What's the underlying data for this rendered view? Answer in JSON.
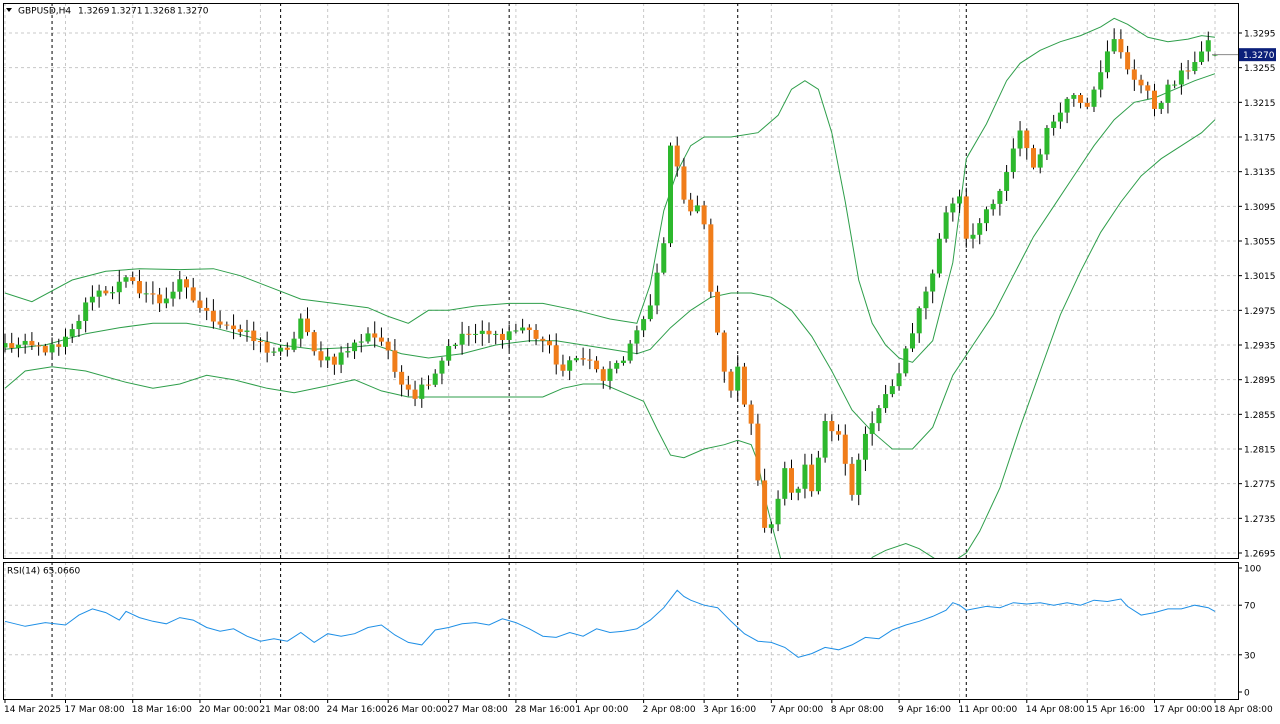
{
  "header": {
    "symbol": "GBPUSD,H4",
    "open": "1.3269",
    "high": "1.3271",
    "low": "1.3268",
    "close": "1.3270",
    "current_price_label": "1.3270"
  },
  "rsi_panel": {
    "label": "RSI(14) 65.0660",
    "levels": [
      100,
      70,
      30,
      0
    ],
    "level_labels": [
      "100",
      "70",
      "30",
      "0"
    ]
  },
  "colors": {
    "bull": "#2db82d",
    "bear": "#f07d1a",
    "wick": "#000000",
    "bands": "#2e9e4a",
    "rsi_line": "#1e8fe6",
    "grid": "#c8c8c8",
    "period_sep": "#000000",
    "price_tag_bg": "#0b1f7a",
    "price_tag_fg": "#ffffff"
  },
  "chart_data": {
    "type": "candlestick",
    "symbol": "GBPUSD",
    "timeframe": "H4",
    "y_ticks": [
      1.3295,
      1.3255,
      1.3215,
      1.3175,
      1.3135,
      1.3095,
      1.3055,
      1.3015,
      1.2975,
      1.2935,
      1.2895,
      1.2855,
      1.2815,
      1.2775,
      1.2735,
      1.2695
    ],
    "y_tick_labels": [
      "1.3295",
      "1.3255",
      "1.3215",
      "1.3175",
      "1.3135",
      "1.3095",
      "1.3055",
      "1.3015",
      "1.2975",
      "1.2935",
      "1.2895",
      "1.2855",
      "1.2815",
      "1.2775",
      "1.2735",
      "1.2695"
    ],
    "ylim": [
      1.2688,
      1.3322
    ],
    "x_labels": [
      {
        "bar": 0,
        "label": "14 Mar 2025"
      },
      {
        "bar": 9,
        "label": "17 Mar 08:00"
      },
      {
        "bar": 19,
        "label": "18 Mar 16:00"
      },
      {
        "bar": 29,
        "label": "20 Mar 00:00"
      },
      {
        "bar": 38,
        "label": "21 Mar 08:00"
      },
      {
        "bar": 48,
        "label": "24 Mar 16:00"
      },
      {
        "bar": 57,
        "label": "26 Mar 00:00"
      },
      {
        "bar": 66,
        "label": "27 Mar 08:00"
      },
      {
        "bar": 76,
        "label": "28 Mar 16:00"
      },
      {
        "bar": 85,
        "label": "1 Apr 00:00"
      },
      {
        "bar": 95,
        "label": "2 Apr 08:00"
      },
      {
        "bar": 104,
        "label": "3 Apr 16:00"
      },
      {
        "bar": 114,
        "label": "7 Apr 00:00"
      },
      {
        "bar": 123,
        "label": "8 Apr 08:00"
      },
      {
        "bar": 133,
        "label": "9 Apr 16:00"
      },
      {
        "bar": 142,
        "label": "11 Apr 00:00"
      },
      {
        "bar": 152,
        "label": "14 Apr 08:00"
      },
      {
        "bar": 161,
        "label": "15 Apr 16:00"
      },
      {
        "bar": 171,
        "label": "17 Apr 00:00"
      },
      {
        "bar": 180,
        "label": "18 Apr 08:00"
      }
    ],
    "period_separators": [
      7,
      41,
      75,
      109,
      143
    ],
    "bar_count": 181,
    "waypoints": [
      [
        0,
        1.2935
      ],
      [
        4,
        1.2932
      ],
      [
        8,
        1.293
      ],
      [
        10,
        1.295
      ],
      [
        13,
        1.2995
      ],
      [
        16,
        1.3
      ],
      [
        18,
        1.3008
      ],
      [
        20,
        1.3
      ],
      [
        23,
        1.2985
      ],
      [
        26,
        1.3005
      ],
      [
        30,
        1.297
      ],
      [
        33,
        1.296
      ],
      [
        36,
        1.2945
      ],
      [
        39,
        1.293
      ],
      [
        42,
        1.2925
      ],
      [
        44,
        1.2965
      ],
      [
        46,
        1.2925
      ],
      [
        49,
        1.2918
      ],
      [
        52,
        1.2935
      ],
      [
        54,
        1.295
      ],
      [
        56,
        1.294
      ],
      [
        58,
        1.2905
      ],
      [
        61,
        1.2878
      ],
      [
        64,
        1.2905
      ],
      [
        66,
        1.2935
      ],
      [
        69,
        1.2948
      ],
      [
        73,
        1.2945
      ],
      [
        77,
        1.2955
      ],
      [
        80,
        1.294
      ],
      [
        83,
        1.2905
      ],
      [
        86,
        1.2925
      ],
      [
        89,
        1.2895
      ],
      [
        92,
        1.292
      ],
      [
        94,
        1.2945
      ],
      [
        96,
        1.2985
      ],
      [
        98,
        1.305
      ],
      [
        99,
        1.316
      ],
      [
        100,
        1.314
      ],
      [
        101,
        1.31
      ],
      [
        103,
        1.309
      ],
      [
        104,
        1.308
      ],
      [
        105,
        1.3
      ],
      [
        106,
        1.295
      ],
      [
        107,
        1.29
      ],
      [
        108,
        1.2885
      ],
      [
        109,
        1.2905
      ],
      [
        110,
        1.287
      ],
      [
        111,
        1.284
      ],
      [
        112,
        1.278
      ],
      [
        113,
        1.2725
      ],
      [
        114,
        1.2735
      ],
      [
        115,
        1.276
      ],
      [
        116,
        1.279
      ],
      [
        117,
        1.276
      ],
      [
        118,
        1.2765
      ],
      [
        119,
        1.279
      ],
      [
        120,
        1.2765
      ],
      [
        121,
        1.28
      ],
      [
        122,
        1.285
      ],
      [
        124,
        1.2835
      ],
      [
        126,
        1.276
      ],
      [
        127,
        1.28
      ],
      [
        128,
        1.283
      ],
      [
        130,
        1.286
      ],
      [
        132,
        1.2885
      ],
      [
        134,
        1.293
      ],
      [
        136,
        1.2975
      ],
      [
        138,
        1.302
      ],
      [
        140,
        1.309
      ],
      [
        142,
        1.311
      ],
      [
        143,
        1.306
      ],
      [
        145,
        1.3075
      ],
      [
        147,
        1.3095
      ],
      [
        149,
        1.313
      ],
      [
        151,
        1.3185
      ],
      [
        153,
        1.314
      ],
      [
        155,
        1.318
      ],
      [
        157,
        1.321
      ],
      [
        159,
        1.3225
      ],
      [
        161,
        1.3215
      ],
      [
        163,
        1.3255
      ],
      [
        165,
        1.3285
      ],
      [
        167,
        1.3255
      ],
      [
        169,
        1.3235
      ],
      [
        171,
        1.321
      ],
      [
        173,
        1.323
      ],
      [
        175,
        1.3245
      ],
      [
        177,
        1.3265
      ],
      [
        179,
        1.328
      ],
      [
        180,
        1.327
      ]
    ],
    "bollinger": {
      "upper": [
        [
          0,
          1.2995
        ],
        [
          4,
          1.2985
        ],
        [
          10,
          1.301
        ],
        [
          15,
          1.302
        ],
        [
          20,
          1.3023
        ],
        [
          26,
          1.3022
        ],
        [
          31,
          1.3023
        ],
        [
          35,
          1.3015
        ],
        [
          40,
          1.3
        ],
        [
          44,
          1.2988
        ],
        [
          49,
          1.2983
        ],
        [
          54,
          1.2978
        ],
        [
          57,
          1.2968
        ],
        [
          60,
          1.296
        ],
        [
          63,
          1.2975
        ],
        [
          66,
          1.2975
        ],
        [
          70,
          1.298
        ],
        [
          75,
          1.2983
        ],
        [
          80,
          1.2983
        ],
        [
          85,
          1.2975
        ],
        [
          90,
          1.2965
        ],
        [
          94,
          1.296
        ],
        [
          96,
          1.3005
        ],
        [
          98,
          1.309
        ],
        [
          100,
          1.3135
        ],
        [
          102,
          1.3165
        ],
        [
          104,
          1.3175
        ],
        [
          108,
          1.3175
        ],
        [
          112,
          1.318
        ],
        [
          115,
          1.32
        ],
        [
          117,
          1.323
        ],
        [
          119,
          1.324
        ],
        [
          121,
          1.323
        ],
        [
          123,
          1.318
        ],
        [
          125,
          1.31
        ],
        [
          127,
          1.301
        ],
        [
          129,
          1.296
        ],
        [
          131,
          1.2935
        ],
        [
          133,
          1.292
        ],
        [
          135,
          1.2915
        ],
        [
          138,
          1.294
        ],
        [
          141,
          1.303
        ],
        [
          143,
          1.315
        ],
        [
          146,
          1.319
        ],
        [
          149,
          1.324
        ],
        [
          151,
          1.326
        ],
        [
          154,
          1.3275
        ],
        [
          157,
          1.3285
        ],
        [
          160,
          1.3292
        ],
        [
          163,
          1.3302
        ],
        [
          165,
          1.3312
        ],
        [
          167,
          1.3305
        ],
        [
          170,
          1.329
        ],
        [
          173,
          1.3285
        ],
        [
          176,
          1.3288
        ],
        [
          178,
          1.3292
        ],
        [
          180,
          1.329
        ]
      ],
      "middle": [
        [
          0,
          1.293
        ],
        [
          6,
          1.2935
        ],
        [
          12,
          1.2948
        ],
        [
          17,
          1.2955
        ],
        [
          22,
          1.296
        ],
        [
          27,
          1.296
        ],
        [
          31,
          1.2955
        ],
        [
          36,
          1.2945
        ],
        [
          41,
          1.2935
        ],
        [
          46,
          1.293
        ],
        [
          51,
          1.2932
        ],
        [
          55,
          1.2935
        ],
        [
          59,
          1.2925
        ],
        [
          63,
          1.292
        ],
        [
          68,
          1.2925
        ],
        [
          73,
          1.2935
        ],
        [
          78,
          1.294
        ],
        [
          82,
          1.294
        ],
        [
          86,
          1.2935
        ],
        [
          90,
          1.293
        ],
        [
          94,
          1.2925
        ],
        [
          96,
          1.293
        ],
        [
          99,
          1.2955
        ],
        [
          102,
          1.2975
        ],
        [
          105,
          1.299
        ],
        [
          108,
          1.2995
        ],
        [
          111,
          1.2995
        ],
        [
          114,
          1.299
        ],
        [
          117,
          1.2975
        ],
        [
          120,
          1.2945
        ],
        [
          123,
          1.2905
        ],
        [
          126,
          1.286
        ],
        [
          129,
          1.2835
        ],
        [
          132,
          1.2815
        ],
        [
          135,
          1.2815
        ],
        [
          138,
          1.284
        ],
        [
          141,
          1.29
        ],
        [
          144,
          1.2935
        ],
        [
          147,
          1.297
        ],
        [
          150,
          1.3015
        ],
        [
          153,
          1.306
        ],
        [
          156,
          1.3095
        ],
        [
          159,
          1.313
        ],
        [
          162,
          1.3165
        ],
        [
          165,
          1.3195
        ],
        [
          168,
          1.3215
        ],
        [
          171,
          1.322
        ],
        [
          174,
          1.323
        ],
        [
          177,
          1.324
        ],
        [
          180,
          1.3248
        ]
      ],
      "lower": [
        [
          0,
          1.2885
        ],
        [
          3,
          1.2905
        ],
        [
          7,
          1.291
        ],
        [
          12,
          1.2905
        ],
        [
          18,
          1.2892
        ],
        [
          22,
          1.2885
        ],
        [
          26,
          1.289
        ],
        [
          30,
          1.29
        ],
        [
          34,
          1.2895
        ],
        [
          39,
          1.2885
        ],
        [
          43,
          1.288
        ],
        [
          48,
          1.2888
        ],
        [
          52,
          1.2895
        ],
        [
          56,
          1.2882
        ],
        [
          60,
          1.2875
        ],
        [
          65,
          1.2875
        ],
        [
          70,
          1.2875
        ],
        [
          75,
          1.2875
        ],
        [
          80,
          1.2875
        ],
        [
          83,
          1.2885
        ],
        [
          86,
          1.289
        ],
        [
          89,
          1.289
        ],
        [
          92,
          1.288
        ],
        [
          95,
          1.287
        ],
        [
          97,
          1.2838
        ],
        [
          99,
          1.2808
        ],
        [
          101,
          1.2805
        ],
        [
          104,
          1.2815
        ],
        [
          107,
          1.282
        ],
        [
          109,
          1.2825
        ],
        [
          111,
          1.282
        ],
        [
          112,
          1.28
        ],
        [
          113,
          1.276
        ],
        [
          114,
          1.273
        ],
        [
          115,
          1.27
        ],
        [
          116,
          1.267
        ],
        [
          117,
          1.264
        ],
        [
          118,
          1.262
        ],
        [
          121,
          1.26
        ],
        [
          124,
          1.261
        ],
        [
          127,
          1.265
        ],
        [
          129,
          1.269
        ],
        [
          131,
          1.2698
        ],
        [
          134,
          1.2706
        ],
        [
          136,
          1.27
        ],
        [
          138,
          1.269
        ],
        [
          140,
          1.268
        ],
        [
          143,
          1.2695
        ],
        [
          145,
          1.272
        ],
        [
          148,
          1.277
        ],
        [
          151,
          1.284
        ],
        [
          154,
          1.2905
        ],
        [
          157,
          1.297
        ],
        [
          160,
          1.302
        ],
        [
          163,
          1.3065
        ],
        [
          166,
          1.31
        ],
        [
          169,
          1.313
        ],
        [
          172,
          1.315
        ],
        [
          175,
          1.3165
        ],
        [
          178,
          1.318
        ],
        [
          180,
          1.3195
        ]
      ]
    },
    "rsi": [
      [
        0,
        57
      ],
      [
        3,
        53
      ],
      [
        6,
        56
      ],
      [
        9,
        54
      ],
      [
        11,
        62
      ],
      [
        13,
        67
      ],
      [
        15,
        64
      ],
      [
        17,
        58
      ],
      [
        18,
        65
      ],
      [
        20,
        60
      ],
      [
        22,
        57
      ],
      [
        24,
        55
      ],
      [
        26,
        60
      ],
      [
        28,
        58
      ],
      [
        30,
        52
      ],
      [
        32,
        49
      ],
      [
        34,
        51
      ],
      [
        36,
        45
      ],
      [
        38,
        41
      ],
      [
        40,
        43
      ],
      [
        42,
        41
      ],
      [
        44,
        48
      ],
      [
        46,
        40
      ],
      [
        48,
        47
      ],
      [
        50,
        45
      ],
      [
        52,
        47
      ],
      [
        54,
        52
      ],
      [
        56,
        54
      ],
      [
        58,
        46
      ],
      [
        60,
        40
      ],
      [
        62,
        38
      ],
      [
        64,
        50
      ],
      [
        66,
        52
      ],
      [
        68,
        55
      ],
      [
        70,
        56
      ],
      [
        72,
        54
      ],
      [
        74,
        59
      ],
      [
        76,
        56
      ],
      [
        78,
        51
      ],
      [
        80,
        45
      ],
      [
        82,
        44
      ],
      [
        84,
        48
      ],
      [
        86,
        45
      ],
      [
        88,
        51
      ],
      [
        90,
        48
      ],
      [
        92,
        49
      ],
      [
        94,
        51
      ],
      [
        96,
        58
      ],
      [
        98,
        68
      ],
      [
        100,
        82
      ],
      [
        101,
        77
      ],
      [
        102,
        74
      ],
      [
        104,
        70
      ],
      [
        106,
        68
      ],
      [
        108,
        57
      ],
      [
        110,
        47
      ],
      [
        112,
        41
      ],
      [
        114,
        40
      ],
      [
        116,
        36
      ],
      [
        118,
        28
      ],
      [
        120,
        31
      ],
      [
        122,
        36
      ],
      [
        124,
        34
      ],
      [
        126,
        38
      ],
      [
        128,
        44
      ],
      [
        130,
        43
      ],
      [
        132,
        50
      ],
      [
        134,
        54
      ],
      [
        136,
        57
      ],
      [
        138,
        61
      ],
      [
        140,
        66
      ],
      [
        141,
        72
      ],
      [
        142,
        70
      ],
      [
        143,
        66
      ],
      [
        146,
        69
      ],
      [
        148,
        68
      ],
      [
        150,
        72
      ],
      [
        152,
        71
      ],
      [
        154,
        72
      ],
      [
        156,
        70
      ],
      [
        158,
        72
      ],
      [
        160,
        70
      ],
      [
        162,
        74
      ],
      [
        164,
        73
      ],
      [
        166,
        75
      ],
      [
        167,
        69
      ],
      [
        169,
        62
      ],
      [
        171,
        64
      ],
      [
        173,
        67
      ],
      [
        175,
        67
      ],
      [
        177,
        70
      ],
      [
        179,
        68
      ],
      [
        180,
        65
      ]
    ]
  }
}
